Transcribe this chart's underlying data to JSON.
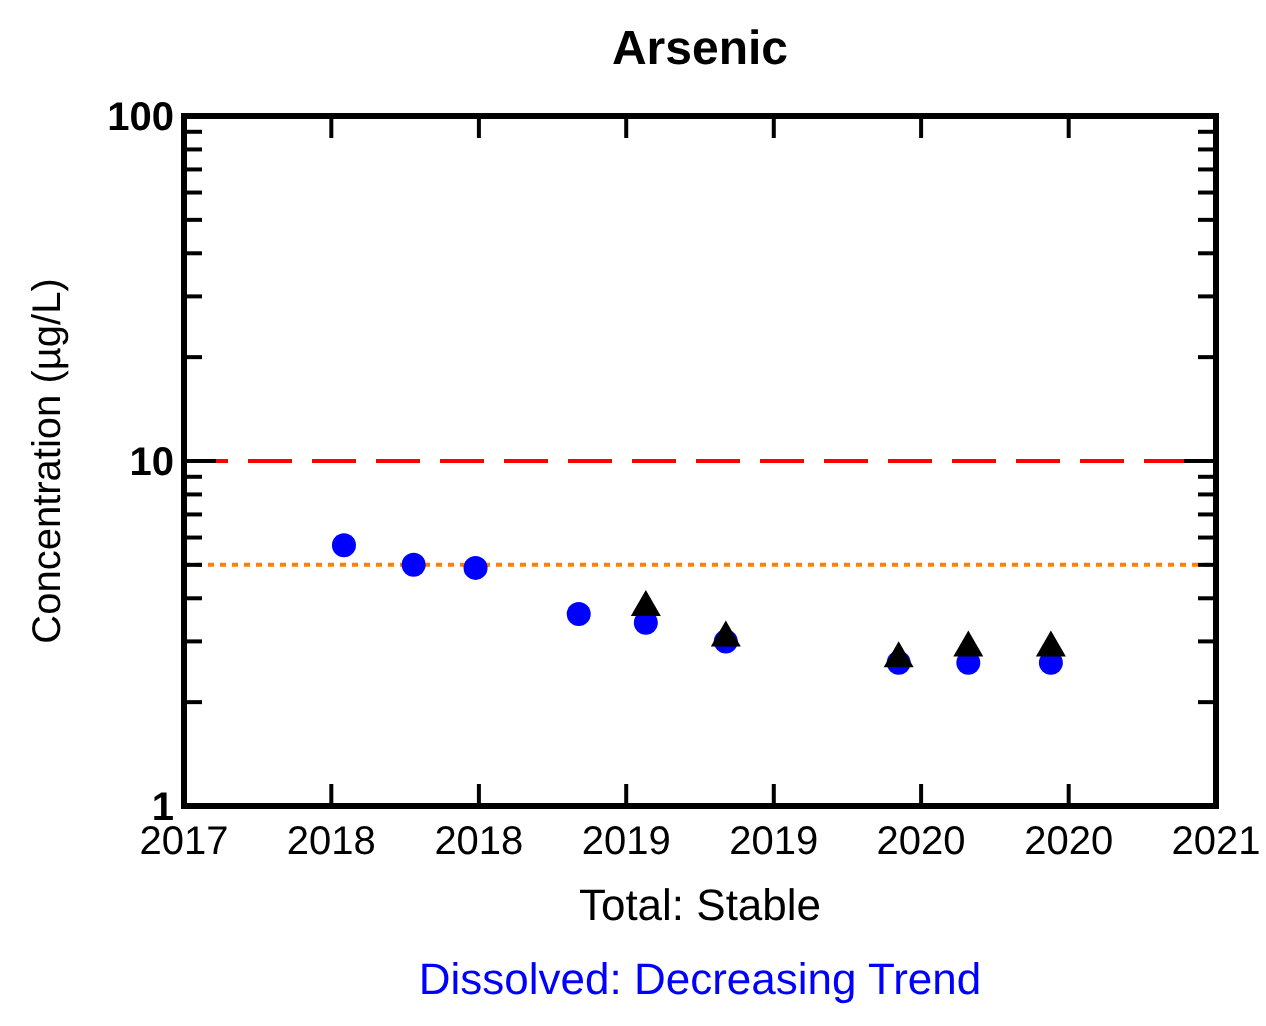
{
  "chart_data": {
    "type": "scatter",
    "title": "Arsenic",
    "ylabel": "Concentration (µg/L)",
    "annotations": [
      "Total: Stable",
      "Dissolved: Decreasing Trend"
    ],
    "log": "y",
    "grid": false,
    "xlim": [
      2017,
      2021
    ],
    "xticks": [
      {
        "value": 2017,
        "label": "2017"
      },
      {
        "value": 2017.571,
        "label": "2018"
      },
      {
        "value": 2018.143,
        "label": "2018"
      },
      {
        "value": 2018.714,
        "label": "2019"
      },
      {
        "value": 2019.286,
        "label": "2019"
      },
      {
        "value": 2019.857,
        "label": "2020"
      },
      {
        "value": 2020.429,
        "label": "2020"
      },
      {
        "value": 2021,
        "label": "2021"
      }
    ],
    "ylim": [
      1,
      100
    ],
    "yticks": [
      1,
      {
        "value": 2,
        "label": null
      },
      {
        "value": 3,
        "label": null
      },
      {
        "value": 4,
        "label": null
      },
      {
        "value": 5,
        "label": null
      },
      {
        "value": 6,
        "label": null
      },
      {
        "value": 7,
        "label": null
      },
      {
        "value": 8,
        "label": null
      },
      {
        "value": 9,
        "label": null
      },
      10,
      {
        "value": 20,
        "label": null
      },
      {
        "value": 30,
        "label": null
      },
      {
        "value": 40,
        "label": null
      },
      {
        "value": 50,
        "label": null
      },
      {
        "value": 60,
        "label": null
      },
      {
        "value": 70,
        "label": null
      },
      {
        "value": 80,
        "label": null
      },
      {
        "value": 90,
        "label": null
      },
      100
    ],
    "ref_lines": [
      {
        "axis": "y",
        "value": 10,
        "color": "#ff0000",
        "line_style": "dashed"
      },
      {
        "axis": "y",
        "value": 5,
        "color": "#ff8000",
        "line_style": "dotted"
      }
    ],
    "series": [
      {
        "color": "#0000ff",
        "marker": "circle",
        "x": [
          2017.62,
          2017.89,
          2018.13,
          2018.53,
          2018.79,
          2019.1,
          2019.77,
          2020.04,
          2020.36
        ],
        "values": [
          5.7,
          5.0,
          4.9,
          3.6,
          3.4,
          3.0,
          2.6,
          2.6,
          2.6
        ]
      },
      {
        "color": "#000000",
        "marker": "triangle",
        "x": [
          2018.79,
          2019.1,
          2019.77,
          2020.04,
          2020.36
        ],
        "values": [
          3.8,
          3.1,
          2.7,
          2.9,
          2.9
        ]
      }
    ]
  }
}
